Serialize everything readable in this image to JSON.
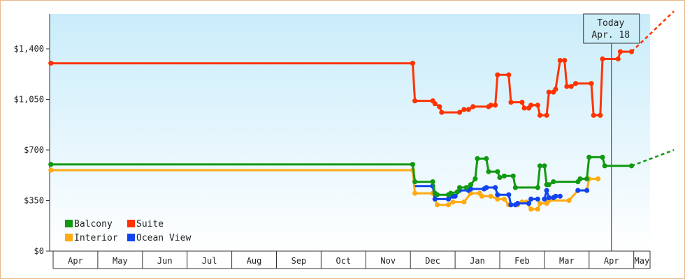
{
  "chart_data": {
    "type": "line",
    "title": "",
    "xlabel": "",
    "ylabel": "",
    "ylim": [
      0,
      1400
    ],
    "y_ticks": [
      {
        "value": 0,
        "label": "$0"
      },
      {
        "value": 350,
        "label": "$350"
      },
      {
        "value": 700,
        "label": "$700"
      },
      {
        "value": 1050,
        "label": "$1,050"
      },
      {
        "value": 1400,
        "label": "$1,400"
      }
    ],
    "x_domain": [
      0,
      13.5
    ],
    "months": [
      "Apr",
      "May",
      "Jun",
      "Jul",
      "Aug",
      "Sep",
      "Oct",
      "Nov",
      "Dec",
      "Jan",
      "Feb",
      "Mar",
      "Apr",
      "May"
    ],
    "today": {
      "line1": "Today",
      "line2": "Apr. 18",
      "x": 12.5
    },
    "legend": {
      "placement": "bottom-left"
    },
    "colors": {
      "Balcony": "#119911",
      "Suite": "#ff3300",
      "Interior": "#ffaa11",
      "Ocean View": "#1144ee"
    },
    "series": [
      {
        "name": "Suite",
        "points": [
          [
            -0.05,
            1300
          ],
          [
            8.05,
            1300
          ],
          [
            8.1,
            1040
          ],
          [
            8.5,
            1040
          ],
          [
            8.55,
            1020
          ],
          [
            8.65,
            1000
          ],
          [
            8.7,
            960
          ],
          [
            9.1,
            960
          ],
          [
            9.2,
            980
          ],
          [
            9.3,
            980
          ],
          [
            9.4,
            1000
          ],
          [
            9.75,
            1000
          ],
          [
            9.8,
            1010
          ],
          [
            9.9,
            1010
          ],
          [
            9.95,
            1220
          ],
          [
            10.2,
            1220
          ],
          [
            10.25,
            1030
          ],
          [
            10.5,
            1030
          ],
          [
            10.55,
            990
          ],
          [
            10.65,
            990
          ],
          [
            10.7,
            1010
          ],
          [
            10.85,
            1010
          ],
          [
            10.9,
            940
          ],
          [
            11.05,
            940
          ],
          [
            11.1,
            1100
          ],
          [
            11.2,
            1100
          ],
          [
            11.25,
            1120
          ],
          [
            11.35,
            1320
          ],
          [
            11.45,
            1320
          ],
          [
            11.5,
            1140
          ],
          [
            11.6,
            1140
          ],
          [
            11.7,
            1160
          ],
          [
            12.05,
            1160
          ],
          [
            12.1,
            940
          ],
          [
            12.25,
            940
          ],
          [
            12.3,
            1330
          ],
          [
            12.65,
            1330
          ],
          [
            12.7,
            1380
          ],
          [
            12.95,
            1380
          ]
        ],
        "forecast": [
          [
            12.95,
            1380
          ],
          [
            13.9,
            1660
          ]
        ]
      },
      {
        "name": "Balcony",
        "points": [
          [
            -0.05,
            600
          ],
          [
            8.05,
            600
          ],
          [
            8.1,
            480
          ],
          [
            8.5,
            480
          ],
          [
            8.55,
            400
          ],
          [
            8.6,
            390
          ],
          [
            8.85,
            390
          ],
          [
            8.9,
            400
          ],
          [
            9.05,
            410
          ],
          [
            9.1,
            440
          ],
          [
            9.25,
            440
          ],
          [
            9.35,
            460
          ],
          [
            9.45,
            500
          ],
          [
            9.5,
            640
          ],
          [
            9.7,
            640
          ],
          [
            9.75,
            550
          ],
          [
            9.95,
            550
          ],
          [
            10.0,
            510
          ],
          [
            10.1,
            520
          ],
          [
            10.3,
            520
          ],
          [
            10.35,
            440
          ],
          [
            10.85,
            440
          ],
          [
            10.9,
            590
          ],
          [
            11.0,
            590
          ],
          [
            11.05,
            460
          ],
          [
            11.1,
            460
          ],
          [
            11.2,
            480
          ],
          [
            11.75,
            480
          ],
          [
            11.8,
            500
          ],
          [
            11.95,
            500
          ],
          [
            12.0,
            650
          ],
          [
            12.3,
            650
          ],
          [
            12.35,
            590
          ],
          [
            12.95,
            590
          ]
        ],
        "forecast": [
          [
            12.95,
            590
          ],
          [
            13.9,
            700
          ]
        ]
      },
      {
        "name": "Interior",
        "points": [
          [
            -0.05,
            560
          ],
          [
            8.05,
            560
          ],
          [
            8.1,
            400
          ],
          [
            8.5,
            400
          ],
          [
            8.6,
            320
          ],
          [
            8.85,
            320
          ],
          [
            8.95,
            340
          ],
          [
            9.2,
            340
          ],
          [
            9.35,
            400
          ],
          [
            9.55,
            400
          ],
          [
            9.6,
            380
          ],
          [
            9.8,
            380
          ],
          [
            9.95,
            360
          ],
          [
            10.1,
            360
          ],
          [
            10.2,
            320
          ],
          [
            10.4,
            320
          ],
          [
            10.5,
            340
          ],
          [
            10.6,
            340
          ],
          [
            10.7,
            290
          ],
          [
            10.85,
            290
          ],
          [
            10.9,
            330
          ],
          [
            11.05,
            330
          ],
          [
            11.1,
            350
          ],
          [
            11.55,
            350
          ],
          [
            11.75,
            420
          ],
          [
            11.95,
            420
          ],
          [
            12.0,
            500
          ],
          [
            12.2,
            500
          ]
        ]
      },
      {
        "name": "Ocean View",
        "points": [
          [
            8.1,
            450
          ],
          [
            8.5,
            450
          ],
          [
            8.55,
            360
          ],
          [
            8.85,
            360
          ],
          [
            8.95,
            380
          ],
          [
            9.0,
            380
          ],
          [
            9.1,
            420
          ],
          [
            9.3,
            420
          ],
          [
            9.35,
            430
          ],
          [
            9.65,
            430
          ],
          [
            9.7,
            440
          ],
          [
            9.9,
            440
          ],
          [
            9.95,
            390
          ],
          [
            10.2,
            390
          ],
          [
            10.25,
            320
          ],
          [
            10.35,
            320
          ],
          [
            10.4,
            330
          ],
          [
            10.65,
            330
          ],
          [
            10.7,
            360
          ],
          [
            10.85,
            360
          ]
        ],
        "segments2": [
          [
            11.0,
            360
          ],
          [
            11.05,
            420
          ],
          [
            11.1,
            370
          ],
          [
            11.2,
            370
          ],
          [
            11.25,
            380
          ],
          [
            11.35,
            380
          ]
        ],
        "segments3": [
          [
            11.75,
            420
          ],
          [
            11.95,
            420
          ]
        ]
      }
    ],
    "legend_order": [
      "Balcony",
      "Suite",
      "Interior",
      "Ocean View"
    ]
  }
}
